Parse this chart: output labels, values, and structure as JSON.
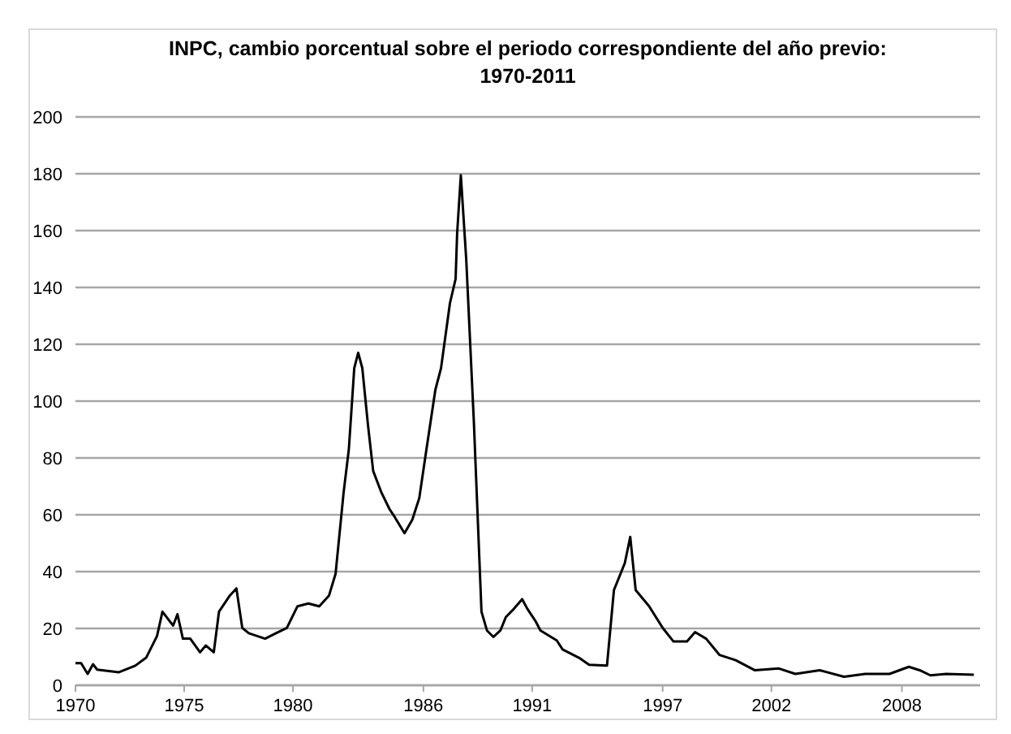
{
  "chart_data": {
    "type": "line",
    "title": "INPC, cambio porcentual  sobre el periodo  correspondiente  del año previo:\n1970-2011",
    "x": [
      1970.0,
      1970.26,
      1970.56,
      1970.81,
      1971.0,
      1972.0,
      1972.75,
      1973.25,
      1973.75,
      1974.0,
      1974.49,
      1974.69,
      1974.94,
      1975.28,
      1975.73,
      1975.99,
      1976.36,
      1976.6,
      1977.1,
      1977.4,
      1977.67,
      1977.97,
      1978.72,
      1979.22,
      1979.72,
      1980.21,
      1980.71,
      1981.21,
      1981.66,
      1981.96,
      1982.33,
      1982.57,
      1982.82,
      1983.0,
      1983.19,
      1983.45,
      1983.69,
      1984.07,
      1984.44,
      1984.69,
      1985.13,
      1985.49,
      1985.81,
      1986.1,
      1986.55,
      1986.81,
      1987.22,
      1987.48,
      1987.55,
      1987.72,
      1987.97,
      1988.32,
      1988.42,
      1988.67,
      1988.92,
      1989.22,
      1989.54,
      1989.79,
      1990.16,
      1990.54,
      1990.78,
      1991.16,
      1991.38,
      1992.13,
      1992.4,
      1993.15,
      1993.62,
      1994.44,
      1994.76,
      1995.26,
      1995.51,
      1995.76,
      1996.38,
      1997.0,
      1997.5,
      1998.12,
      1998.49,
      1999.0,
      1999.61,
      2000.36,
      2001.23,
      2002.35,
      2003.1,
      2004.22,
      2005.34,
      2006.31,
      2007.43,
      2008.32,
      2008.82,
      2009.31,
      2010.04,
      2011.31
    ],
    "series": [
      {
        "color": "#000000",
        "values": [
          7.8,
          7.8,
          4,
          7.4,
          5.5,
          4.6,
          6.9,
          9.7,
          17.3,
          25.9,
          21,
          25,
          16.4,
          16.4,
          11.6,
          14,
          11.6,
          25.9,
          31.6,
          34.1,
          20.2,
          18.3,
          16.4,
          18.3,
          20.2,
          27.8,
          28.8,
          27.8,
          31.6,
          39.2,
          67.8,
          83,
          111.6,
          117,
          111.6,
          91.6,
          75.4,
          67.8,
          62,
          59.1,
          53.5,
          58.3,
          65.9,
          81,
          104,
          111.6,
          134.5,
          143,
          159,
          179.5,
          149.7,
          92.6,
          73.5,
          25.9,
          19.3,
          17,
          19.3,
          24,
          26.9,
          30.3,
          26.9,
          22.5,
          19.3,
          15.8,
          12.6,
          9.7,
          7.2,
          6.9,
          33.5,
          43,
          52.2,
          33.5,
          27.8,
          20.2,
          15.4,
          15.4,
          18.7,
          16.4,
          10.7,
          8.8,
          5.3,
          5.9,
          4,
          5.3,
          3,
          4,
          4,
          6.5,
          5.3,
          3.5,
          4,
          3.7
        ]
      }
    ],
    "xlim": [
      1970,
      2011.6
    ],
    "xticks": [
      1970,
      1975,
      1980,
      1986,
      1991,
      1997,
      2002,
      2008
    ],
    "ylim": [
      0,
      200
    ],
    "yticks": [
      0,
      20,
      40,
      60,
      80,
      100,
      120,
      140,
      160,
      180,
      200
    ],
    "grid": "y",
    "marker": "none",
    "line_style": "solid"
  }
}
